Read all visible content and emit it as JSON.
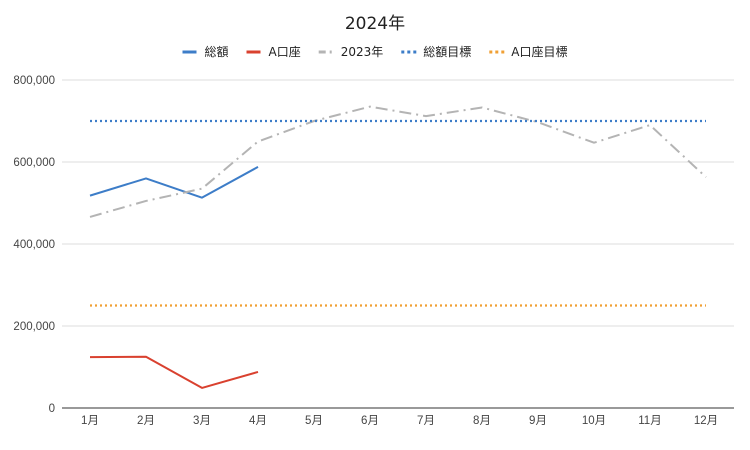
{
  "chart_data": {
    "type": "line",
    "title": "2024年",
    "categories": [
      "1月",
      "2月",
      "3月",
      "4月",
      "5月",
      "6月",
      "7月",
      "8月",
      "9月",
      "10月",
      "11月",
      "12月"
    ],
    "ylim": [
      0,
      800000
    ],
    "yticks": [
      0,
      200000,
      400000,
      600000,
      800000
    ],
    "ytick_labels": [
      "0",
      "200,000",
      "400,000",
      "600,000",
      "800,000"
    ],
    "grid": "horizontal",
    "legend_position": "top",
    "series": [
      {
        "name": "総額",
        "color": "#3d7dc8",
        "dash": "solid",
        "values": [
          518000,
          560000,
          513000,
          588000,
          null,
          null,
          null,
          null,
          null,
          null,
          null,
          null
        ]
      },
      {
        "name": "A口座",
        "color": "#d9412f",
        "dash": "solid",
        "values": [
          124000,
          125000,
          49000,
          88000,
          null,
          null,
          null,
          null,
          null,
          null,
          null,
          null
        ]
      },
      {
        "name": "2023年",
        "color": "#b4b4b4",
        "dash": "dashdot",
        "values": [
          466000,
          505000,
          535000,
          650000,
          700000,
          735000,
          712000,
          733000,
          697000,
          647000,
          690000,
          563000
        ]
      },
      {
        "name": "総額目標",
        "color": "#3d7dc8",
        "dash": "dotted",
        "values": [
          700000,
          700000,
          700000,
          700000,
          700000,
          700000,
          700000,
          700000,
          700000,
          700000,
          700000,
          700000
        ]
      },
      {
        "name": "A口座目標",
        "color": "#f0a035",
        "dash": "dotted",
        "values": [
          250000,
          250000,
          250000,
          250000,
          250000,
          250000,
          250000,
          250000,
          250000,
          250000,
          250000,
          250000
        ]
      }
    ]
  }
}
